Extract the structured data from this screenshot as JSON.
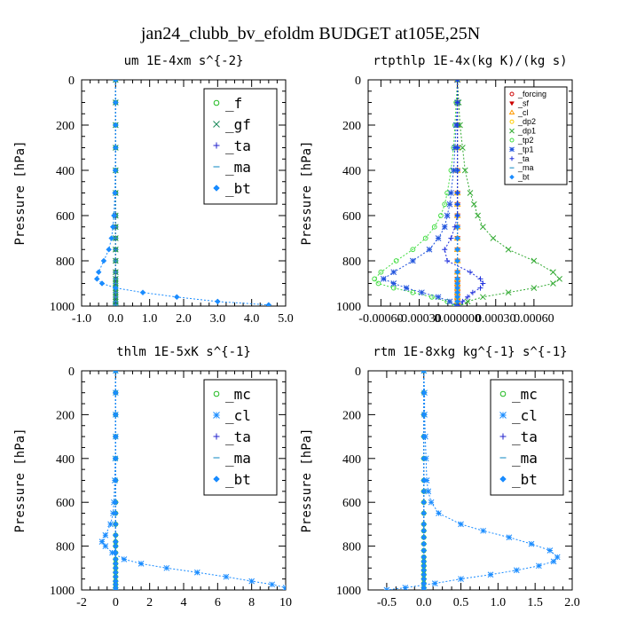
{
  "figure": {
    "title": "jan24_clubb_bv_efoldm  BUDGET at105E,25N"
  },
  "chart_data": [
    {
      "type": "line",
      "title": "um  1E-4xm s^{-2}",
      "ylabel": "Pressure [hPa]",
      "xlim": [
        -1.0,
        5.0
      ],
      "ylim": [
        1000,
        0
      ],
      "xticks": [
        -1.0,
        0.0,
        1.0,
        2.0,
        3.0,
        4.0,
        5.0
      ],
      "xtick_labels": [
        "-1.0",
        "0.0",
        "1.0",
        "2.0",
        "3.0",
        "4.0",
        "5.0"
      ],
      "yticks": [
        0,
        200,
        400,
        600,
        800,
        1000
      ],
      "legend_position": "top-right",
      "legend_style": "big",
      "pressure": [
        0,
        100,
        200,
        300,
        400,
        500,
        600,
        650,
        700,
        750,
        800,
        850,
        880,
        900,
        920,
        940,
        960,
        980,
        995
      ],
      "series": [
        {
          "name": "_f",
          "color": "#22bb22",
          "marker": "circle",
          "values": [
            0,
            0,
            0,
            0,
            0,
            0,
            0,
            0,
            0,
            0,
            0,
            0,
            0,
            0,
            0,
            0,
            0,
            0,
            0
          ]
        },
        {
          "name": "_gf",
          "color": "#1b8a5a",
          "marker": "x",
          "values": [
            0,
            0,
            0,
            0,
            0,
            0,
            0,
            0,
            0,
            0,
            0,
            0,
            0,
            0,
            0,
            0,
            0,
            0,
            0
          ]
        },
        {
          "name": "_ta",
          "color": "#2222cc",
          "marker": "plus",
          "values": [
            0,
            0,
            0,
            0,
            0,
            0,
            0,
            0,
            0,
            0,
            0,
            0,
            0,
            0,
            0,
            0,
            0,
            0,
            0
          ]
        },
        {
          "name": "_ma",
          "color": "#3399cc",
          "marker": "dash",
          "values": [
            0,
            0,
            0,
            0,
            0,
            0,
            0,
            0,
            0,
            0,
            0,
            0,
            0,
            0,
            0,
            0,
            0,
            0,
            0
          ]
        },
        {
          "name": "_bt",
          "color": "#1a8cff",
          "marker": "diamond",
          "values": [
            0,
            0,
            0,
            0,
            -0.01,
            -0.02,
            -0.05,
            -0.08,
            -0.12,
            -0.2,
            -0.35,
            -0.5,
            -0.55,
            -0.4,
            0.0,
            0.8,
            1.8,
            3.0,
            4.5
          ]
        }
      ]
    },
    {
      "type": "line",
      "title": "rtpthlp  1E-4x(kg K)/(kg s)",
      "ylabel": "Pressure [hPa]",
      "xlim": [
        -0.0007,
        0.0009
      ],
      "ylim": [
        1000,
        0
      ],
      "xticks": [
        -0.0006,
        -0.0003,
        0.0,
        0.0003,
        0.0006
      ],
      "xtick_labels": [
        "-0.00060",
        "-0.00030",
        "0.000000",
        "0.00030",
        "0.00060"
      ],
      "yticks": [
        0,
        200,
        400,
        600,
        800,
        1000
      ],
      "legend_position": "top-right",
      "legend_style": "small",
      "pressure": [
        0,
        100,
        200,
        300,
        400,
        500,
        550,
        600,
        650,
        700,
        750,
        800,
        850,
        880,
        900,
        920,
        940,
        960,
        980,
        1000
      ],
      "series": [
        {
          "name": "_forcing",
          "color": "#cc0000",
          "marker": "circle",
          "values": [
            0,
            0,
            0,
            0,
            0,
            0,
            0,
            0,
            0,
            0,
            0,
            0,
            0,
            0,
            0,
            0,
            0,
            0,
            0,
            0
          ]
        },
        {
          "name": "_sf",
          "color": "#cc0000",
          "marker": "triangle",
          "values": [
            0,
            0,
            0,
            0,
            0,
            0,
            0,
            0,
            0,
            0,
            0,
            0,
            0,
            0,
            0,
            0,
            0,
            0,
            0,
            0
          ]
        },
        {
          "name": "_cl",
          "color": "#ff9900",
          "marker": "triangle-up",
          "values": [
            0,
            0,
            0,
            0,
            0,
            0,
            0,
            0,
            0,
            0,
            0,
            0,
            0,
            0,
            0,
            0,
            0,
            0,
            0,
            0
          ]
        },
        {
          "name": "_dp2",
          "color": "#ffcc00",
          "marker": "circle",
          "values": [
            0,
            0,
            0,
            0,
            0,
            0,
            0,
            0,
            0,
            0,
            0,
            0,
            0,
            0,
            0,
            0,
            0,
            0,
            0,
            0
          ]
        },
        {
          "name": "_dp1",
          "color": "#33aa33",
          "marker": "x",
          "values": [
            0,
            1e-05,
            2e-05,
            4e-05,
            6e-05,
            0.0001,
            0.00013,
            0.00016,
            0.0002,
            0.00028,
            0.0004,
            0.0006,
            0.00075,
            0.0008,
            0.00075,
            0.0006,
            0.0004,
            0.0002,
            8e-05,
            2e-05
          ]
        },
        {
          "name": "_tp2",
          "color": "#44dd44",
          "marker": "circle",
          "values": [
            0,
            -1e-05,
            -2e-05,
            -3e-05,
            -5e-05,
            -8e-05,
            -0.0001,
            -0.00013,
            -0.00018,
            -0.00025,
            -0.00035,
            -0.00048,
            -0.0006,
            -0.00065,
            -0.00062,
            -0.0005,
            -0.00035,
            -0.0002,
            -8e-05,
            -2e-05
          ]
        },
        {
          "name": "_tp1",
          "color": "#2255dd",
          "marker": "star",
          "values": [
            0,
            0,
            -1e-05,
            -2e-05,
            -3e-05,
            -5e-05,
            -6e-05,
            -8e-05,
            -0.0001,
            -0.00015,
            -0.00022,
            -0.00035,
            -0.0005,
            -0.00058,
            -0.0005,
            -0.0004,
            -0.00028,
            -0.00015,
            -6e-05,
            -1e-05
          ]
        },
        {
          "name": "_ta",
          "color": "#2233dd",
          "marker": "plus",
          "values": [
            0,
            0,
            0,
            0,
            0,
            0,
            0,
            0,
            -2e-05,
            -5e-05,
            -0.0001,
            -8e-05,
            0.0001,
            0.00018,
            0.0002,
            0.00018,
            0.00012,
            8e-05,
            4e-05,
            1e-05
          ]
        },
        {
          "name": "_ma",
          "color": "#3399cc",
          "marker": "dash",
          "values": [
            0,
            0,
            0,
            0,
            0,
            0,
            0,
            0,
            0,
            0,
            0,
            0,
            0,
            0,
            0,
            0,
            0,
            0,
            0,
            0
          ]
        },
        {
          "name": "_bt",
          "color": "#1a8cff",
          "marker": "diamond",
          "values": [
            0,
            0,
            0,
            0,
            0,
            0,
            0,
            0,
            0,
            0,
            0,
            0,
            0,
            0,
            0,
            0,
            0,
            0,
            0,
            0
          ]
        }
      ]
    },
    {
      "type": "line",
      "title": "thlm  1E-5xK s^{-1}",
      "ylabel": "Pressure [hPa]",
      "xlim": [
        -2,
        10
      ],
      "ylim": [
        1000,
        0
      ],
      "xticks": [
        -2,
        0,
        2,
        4,
        6,
        8,
        10
      ],
      "xtick_labels": [
        "-2",
        "0",
        "2",
        "4",
        "6",
        "8",
        "10"
      ],
      "yticks": [
        0,
        200,
        400,
        600,
        800,
        1000
      ],
      "legend_position": "top-right",
      "legend_style": "big",
      "pressure": [
        0,
        100,
        200,
        300,
        400,
        500,
        600,
        650,
        700,
        750,
        780,
        800,
        830,
        860,
        880,
        900,
        920,
        940,
        960,
        975,
        990,
        1000
      ],
      "series": [
        {
          "name": "_mc",
          "color": "#22bb22",
          "marker": "circle",
          "values": [
            0,
            0,
            0,
            0,
            0,
            0,
            0,
            0,
            0,
            0,
            0,
            0,
            0,
            0,
            0,
            0,
            0,
            0,
            0,
            0,
            0,
            0
          ]
        },
        {
          "name": "_cl",
          "color": "#1a8cff",
          "marker": "star",
          "values": [
            0,
            0,
            0,
            0,
            -0.02,
            -0.05,
            -0.1,
            -0.15,
            -0.3,
            -0.6,
            -0.8,
            -0.6,
            -0.2,
            0.5,
            1.5,
            3.0,
            4.8,
            6.5,
            8.0,
            9.2,
            10.0,
            10.0
          ]
        },
        {
          "name": "_ta",
          "color": "#2222cc",
          "marker": "plus",
          "values": [
            0,
            0,
            0,
            0,
            0,
            0,
            0,
            0,
            0,
            0,
            0,
            0,
            0,
            0,
            0,
            0,
            0,
            0,
            0,
            0,
            0,
            0
          ]
        },
        {
          "name": "_ma",
          "color": "#3399cc",
          "marker": "dash",
          "values": [
            0,
            0,
            0,
            0,
            0,
            0,
            0,
            0,
            0,
            0,
            0,
            0,
            0,
            0,
            0,
            0,
            0,
            0,
            0,
            0,
            0,
            0
          ]
        },
        {
          "name": "_bt",
          "color": "#1a8cff",
          "marker": "diamond",
          "values": [
            0,
            0,
            0,
            0,
            0,
            0,
            0,
            0,
            0,
            0,
            0,
            0,
            0,
            0,
            0,
            0,
            0,
            0,
            0,
            0,
            0,
            0
          ]
        }
      ]
    },
    {
      "type": "line",
      "title": "rtm  1E-8xkg kg^{-1} s^{-1}",
      "ylabel": "Pressure [hPa]",
      "xlim": [
        -0.75,
        2.0
      ],
      "ylim": [
        1000,
        0
      ],
      "xticks": [
        -0.5,
        0.0,
        0.5,
        1.0,
        1.5,
        2.0
      ],
      "xtick_labels": [
        "-0.5",
        "0.0",
        "0.5",
        "1.0",
        "1.5",
        "2.0"
      ],
      "yticks": [
        0,
        200,
        400,
        600,
        800,
        1000
      ],
      "legend_position": "top-right",
      "legend_style": "big",
      "pressure": [
        0,
        100,
        200,
        300,
        400,
        500,
        550,
        600,
        650,
        700,
        730,
        760,
        790,
        820,
        850,
        870,
        890,
        910,
        930,
        950,
        970,
        990,
        1000
      ],
      "series": [
        {
          "name": "_mc",
          "color": "#22bb22",
          "marker": "circle",
          "values": [
            0,
            0,
            0,
            0,
            0,
            0,
            0,
            0,
            0,
            0,
            0,
            0,
            0,
            0,
            0,
            0,
            0,
            0,
            0,
            0,
            0,
            0,
            0
          ]
        },
        {
          "name": "_cl",
          "color": "#1a8cff",
          "marker": "star",
          "values": [
            0,
            0.01,
            0.01,
            0.02,
            0.03,
            0.04,
            0.06,
            0.1,
            0.2,
            0.5,
            0.8,
            1.15,
            1.45,
            1.7,
            1.8,
            1.75,
            1.55,
            1.25,
            0.9,
            0.5,
            0.15,
            -0.25,
            -0.5
          ]
        },
        {
          "name": "_ta",
          "color": "#2222cc",
          "marker": "plus",
          "values": [
            0,
            0,
            0,
            0,
            0,
            0,
            0,
            0,
            0,
            0,
            0,
            0,
            0,
            0,
            0,
            0,
            0,
            0,
            0,
            0,
            0,
            0,
            0
          ]
        },
        {
          "name": "_ma",
          "color": "#3399cc",
          "marker": "dash",
          "values": [
            0,
            0,
            0,
            0,
            0,
            0,
            0,
            0,
            0,
            0,
            0,
            0,
            0,
            0,
            0,
            0,
            0,
            0,
            0,
            0,
            0,
            0,
            0
          ]
        },
        {
          "name": "_bt",
          "color": "#1a8cff",
          "marker": "diamond",
          "values": [
            0,
            0,
            0,
            0,
            0,
            0,
            0,
            0,
            0,
            0,
            0,
            0,
            0,
            0,
            0,
            0,
            0,
            0,
            0,
            0,
            0,
            0,
            0
          ]
        }
      ]
    }
  ]
}
